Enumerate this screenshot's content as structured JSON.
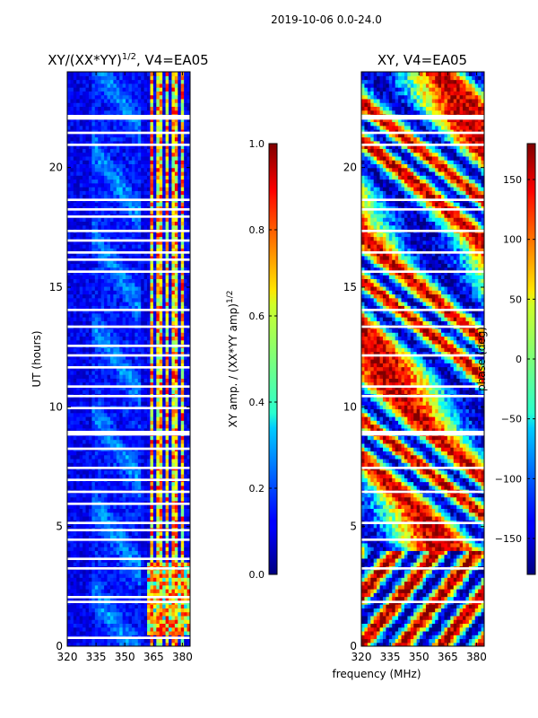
{
  "suptitle": "2019-10-06 0.0-24.0",
  "chart_data": [
    {
      "type": "heatmap",
      "id": "amp",
      "title_main": "XY/(XX*YY)",
      "title_exp": "1/2",
      "title_suffix": ", V4=EA05",
      "xlabel": "",
      "ylabel": "UT (hours)",
      "xlim": [
        320,
        384
      ],
      "ylim": [
        0,
        24
      ],
      "xticks": [
        "320",
        "335",
        "350",
        "365",
        "380"
      ],
      "xtick_values": [
        320,
        335,
        350,
        365,
        380
      ],
      "yticks": [
        "0",
        "5",
        "10",
        "15",
        "20"
      ],
      "ytick_values": [
        0,
        5,
        10,
        15,
        20
      ],
      "colorbar": {
        "label_main": "XY amp. / (XX*YY amp)",
        "label_exp": "1/2",
        "range": [
          0.0,
          1.0
        ],
        "ticks": [
          "0.0",
          "0.2",
          "0.4",
          "0.6",
          "0.8",
          "1.0"
        ],
        "tick_values": [
          0.0,
          0.2,
          0.4,
          0.6,
          0.8,
          1.0
        ],
        "colormap": "jet"
      },
      "flagged_bands_hours": [
        [
          22.0,
          22.2
        ],
        [
          21.4,
          21.5
        ],
        [
          20.9,
          21.0
        ],
        [
          18.6,
          18.7
        ],
        [
          18.2,
          18.3
        ],
        [
          17.9,
          18.0
        ],
        [
          17.3,
          17.4
        ],
        [
          16.9,
          17.0
        ],
        [
          16.4,
          16.5
        ],
        [
          16.1,
          16.2
        ],
        [
          15.6,
          15.7
        ],
        [
          14.0,
          14.1
        ],
        [
          13.3,
          13.4
        ],
        [
          12.5,
          12.6
        ],
        [
          12.1,
          12.2
        ],
        [
          11.6,
          11.7
        ],
        [
          10.8,
          10.9
        ],
        [
          10.4,
          10.5
        ],
        [
          9.9,
          10.0
        ],
        [
          8.8,
          9.0
        ],
        [
          8.2,
          8.3
        ],
        [
          7.4,
          7.5
        ],
        [
          6.9,
          7.0
        ],
        [
          6.4,
          6.5
        ],
        [
          5.9,
          6.0
        ],
        [
          5.1,
          5.2
        ],
        [
          4.8,
          4.9
        ],
        [
          4.4,
          4.5
        ],
        [
          3.6,
          3.7
        ],
        [
          3.2,
          3.3
        ],
        [
          2.0,
          2.1
        ],
        [
          1.8,
          1.9
        ],
        [
          0.3,
          0.4
        ]
      ],
      "description_values": {
        "background_level": 0.05,
        "rfi_channels_mhz": [
          364,
          368,
          372,
          376,
          380
        ],
        "rfi_level": 0.55
      }
    },
    {
      "type": "heatmap",
      "id": "phase",
      "title_main": "XY, V4=EA05",
      "xlabel": "frequency (MHz)",
      "ylabel": "",
      "xlim": [
        320,
        384
      ],
      "ylim": [
        0,
        24
      ],
      "xticks": [
        "320",
        "335",
        "350",
        "365",
        "380"
      ],
      "xtick_values": [
        320,
        335,
        350,
        365,
        380
      ],
      "yticks": [
        "0",
        "5",
        "10",
        "15",
        "20"
      ],
      "ytick_values": [
        0,
        5,
        10,
        15,
        20
      ],
      "colorbar": {
        "label_main": "phase (deg)",
        "range": [
          -180,
          180
        ],
        "ticks": [
          "−150",
          "−100",
          "−50",
          "0",
          "50",
          "100",
          "150"
        ],
        "tick_values": [
          -150,
          -100,
          -50,
          0,
          50,
          100,
          150
        ],
        "colormap": "jet"
      },
      "flagged_bands_hours": [
        [
          22.0,
          22.2
        ],
        [
          21.4,
          21.5
        ],
        [
          20.9,
          21.0
        ],
        [
          18.6,
          18.7
        ],
        [
          18.2,
          18.3
        ],
        [
          17.3,
          17.4
        ],
        [
          16.4,
          16.5
        ],
        [
          15.6,
          15.7
        ],
        [
          14.0,
          14.1
        ],
        [
          13.3,
          13.4
        ],
        [
          12.1,
          12.2
        ],
        [
          10.8,
          10.9
        ],
        [
          10.4,
          10.5
        ],
        [
          8.8,
          9.0
        ],
        [
          7.4,
          7.5
        ],
        [
          6.4,
          6.5
        ],
        [
          5.1,
          5.2
        ],
        [
          4.4,
          4.5
        ],
        [
          3.2,
          3.3
        ],
        [
          1.8,
          1.9
        ]
      ]
    }
  ]
}
